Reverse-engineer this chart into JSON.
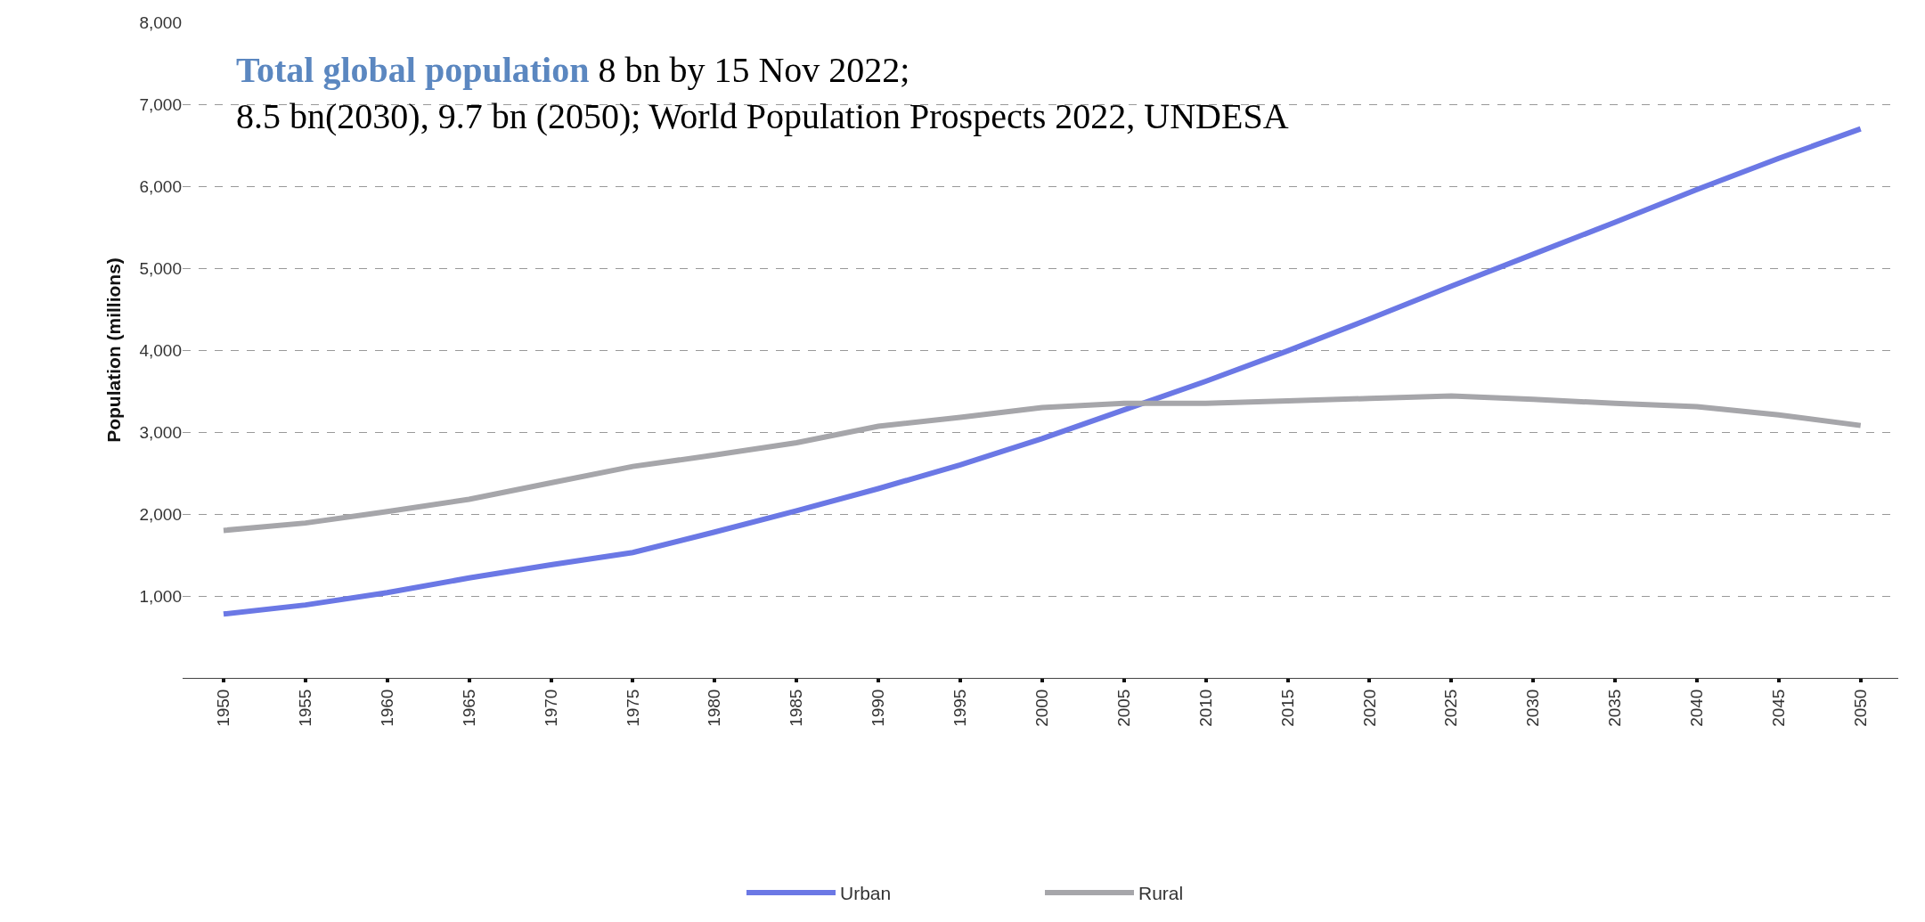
{
  "chart_data": {
    "type": "line",
    "title": "Total global population",
    "subtitle": "8 bn by 15 Nov 2022;\n8.5 bn(2030), 9.7 bn (2050); World Population Prospects 2022, UNDESA",
    "ylabel": "Population (millions)",
    "x": [
      1950,
      1955,
      1960,
      1965,
      1970,
      1975,
      1980,
      1985,
      1990,
      1995,
      2000,
      2005,
      2010,
      2015,
      2020,
      2025,
      2030,
      2035,
      2040,
      2045,
      2050
    ],
    "series": [
      {
        "name": "Urban",
        "color": "#6b78e5",
        "values": [
          780,
          890,
          1040,
          1220,
          1380,
          1530,
          1780,
          2040,
          2310,
          2600,
          2920,
          3270,
          3620,
          3990,
          4380,
          4780,
          5170,
          5560,
          5960,
          6340,
          6700
        ]
      },
      {
        "name": "Rural",
        "color": "#a6a6aa",
        "values": [
          1800,
          1890,
          2030,
          2180,
          2380,
          2580,
          2720,
          2870,
          3070,
          3180,
          3300,
          3350,
          3350,
          3380,
          3410,
          3440,
          3400,
          3350,
          3310,
          3210,
          3080
        ]
      }
    ],
    "xlim": [
      1947.5,
      2052.3
    ],
    "xticks": [
      1950,
      1955,
      1960,
      1965,
      1970,
      1975,
      1980,
      1985,
      1990,
      1995,
      2000,
      2005,
      2010,
      2015,
      2020,
      2025,
      2030,
      2035,
      2040,
      2045,
      2050
    ],
    "ylim": [
      0,
      8000
    ],
    "yticks": [
      {
        "value": 0,
        "label": null
      },
      {
        "value": 1000,
        "label": "1,000"
      },
      {
        "value": 2000,
        "label": "2,000"
      },
      {
        "value": 3000,
        "label": "3,000"
      },
      {
        "value": 4000,
        "label": "4,000"
      },
      {
        "value": 5000,
        "label": "5,000"
      },
      {
        "value": 6000,
        "label": "6,000"
      },
      {
        "value": 7000,
        "label": "7,000"
      },
      {
        "value": 8000,
        "label": "8,000"
      }
    ],
    "grid": "y",
    "legend": "bottom",
    "line_style": "solid"
  }
}
